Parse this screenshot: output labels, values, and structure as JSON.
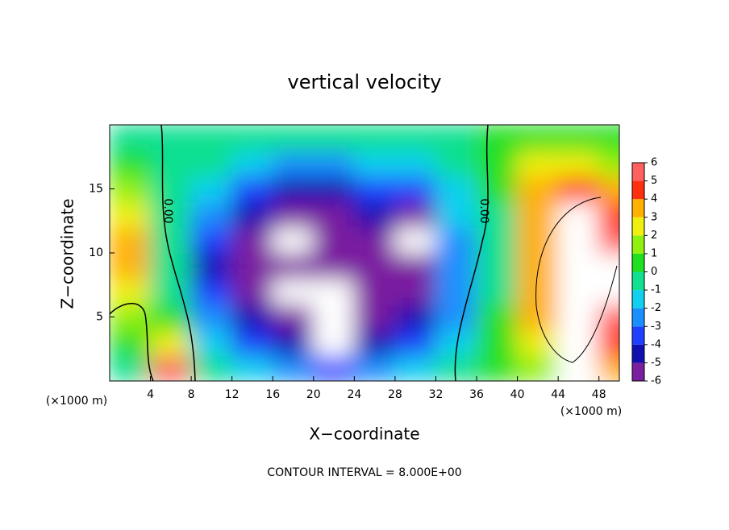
{
  "chart_data": {
    "type": "contourf",
    "title": "vertical velocity",
    "x_label": "X−coordinate",
    "y_label": "Z−coordinate",
    "x_unit_left": "(×1000 m)",
    "x_unit_right": "(×1000 m)",
    "footer": "CONTOUR INTERVAL = 8.000E+00",
    "contour_labels": [
      "0.00",
      "0.00"
    ],
    "xlim": [
      0,
      50
    ],
    "ylim": [
      0,
      20
    ],
    "xticks": [
      4,
      8,
      12,
      16,
      20,
      24,
      28,
      32,
      36,
      40,
      44,
      48
    ],
    "yticks": [
      5,
      10,
      15
    ],
    "x": [
      2,
      6,
      10,
      14,
      18,
      22,
      26,
      30,
      34,
      38,
      42,
      46,
      50
    ],
    "y": [
      1,
      3,
      5,
      7,
      9,
      11,
      13,
      15,
      17,
      19
    ],
    "z": [
      [
        0,
        6,
        0,
        -1,
        -2,
        -3,
        -2,
        -1,
        0,
        1,
        2,
        7,
        4
      ],
      [
        1,
        3,
        -1,
        -3,
        -4,
        -7,
        -4,
        -3,
        -1,
        1,
        3,
        7,
        5
      ],
      [
        2,
        1,
        -2,
        -4,
        -6,
        -8,
        -6,
        -4,
        -2,
        1,
        4,
        8,
        6
      ],
      [
        3,
        0,
        -3,
        -5,
        -7,
        -8,
        -6,
        -5,
        -2,
        0,
        4,
        8,
        7
      ],
      [
        4,
        0,
        -4,
        -5,
        -5,
        -5,
        -5,
        -5,
        -2,
        0,
        4,
        8,
        7
      ],
      [
        4,
        0,
        -3,
        -5,
        -7,
        -5,
        -5,
        -7,
        -2,
        0,
        4,
        8,
        6
      ],
      [
        3,
        0,
        -2,
        -4,
        -5,
        -5,
        -4,
        -5,
        -1,
        0,
        4,
        7,
        5
      ],
      [
        2,
        0,
        -1,
        -3,
        -4,
        -4,
        -3,
        -3,
        -1,
        1,
        4,
        5,
        4
      ],
      [
        1,
        0,
        0,
        -1,
        -2,
        -2,
        -1,
        -1,
        0,
        1,
        3,
        3,
        2
      ],
      [
        0,
        0,
        0,
        0,
        0,
        0,
        0,
        0,
        0,
        1,
        1,
        1,
        1
      ]
    ],
    "colorbar": {
      "ticks": [
        -6,
        -5,
        -4,
        -3,
        -2,
        -1,
        0,
        1,
        2,
        3,
        4,
        5,
        6
      ],
      "colors": [
        "#7a1fa0",
        "#1010b0",
        "#2040ff",
        "#1a90ff",
        "#10d0f0",
        "#10e090",
        "#20e020",
        "#90f010",
        "#f0f010",
        "#ffb000",
        "#ff3010",
        "#ff6060"
      ]
    }
  }
}
